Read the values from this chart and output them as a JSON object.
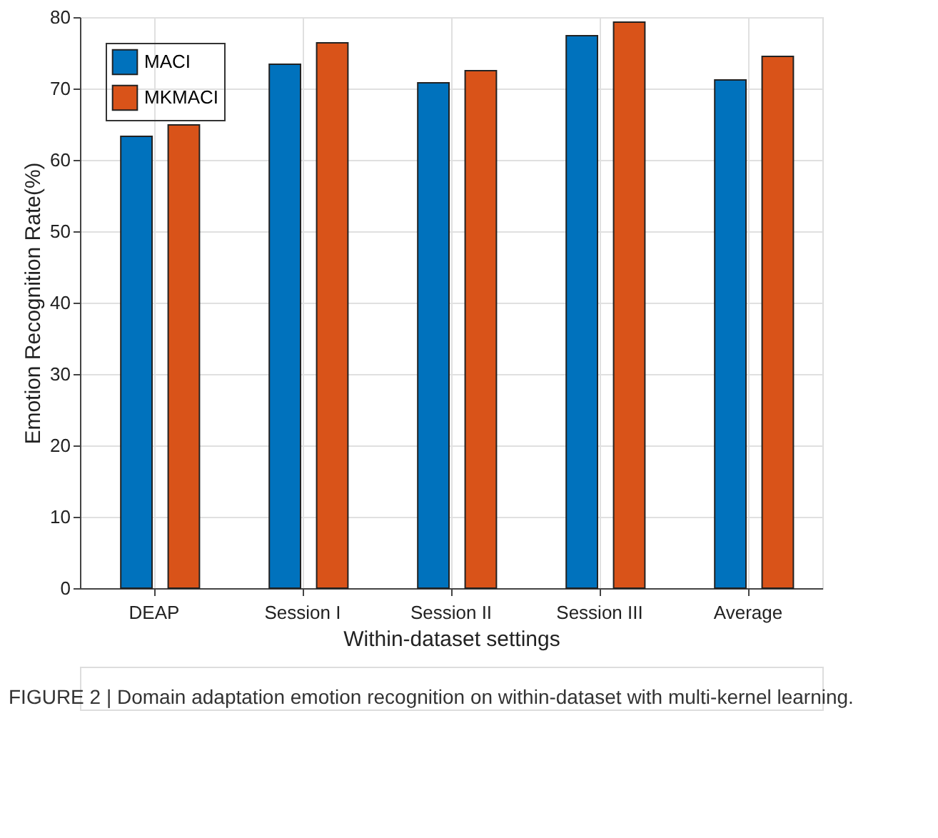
{
  "chart_data": {
    "type": "bar",
    "xlabel": "Within-dataset settings",
    "ylabel": "Emotion Recognition Rate(%)",
    "categories": [
      "DEAP",
      "Session I",
      "Session II",
      "Session III",
      "Average"
    ],
    "series": [
      {
        "name": "MACI",
        "color": "#0072bd",
        "values": [
          63.3,
          73.4,
          70.8,
          77.4,
          71.2
        ]
      },
      {
        "name": "MKMACI",
        "color": "#d95319",
        "values": [
          64.9,
          76.4,
          72.5,
          79.3,
          74.5
        ]
      }
    ],
    "ylim": [
      0,
      80
    ],
    "yticks": [
      0,
      10,
      20,
      30,
      40,
      50,
      60,
      70,
      80
    ],
    "grid": true,
    "legend": "top left",
    "annotations": [
      "FIGURE 2 | Domain adaptation emotion recognition on within-dataset with multi-kernel learning."
    ]
  }
}
